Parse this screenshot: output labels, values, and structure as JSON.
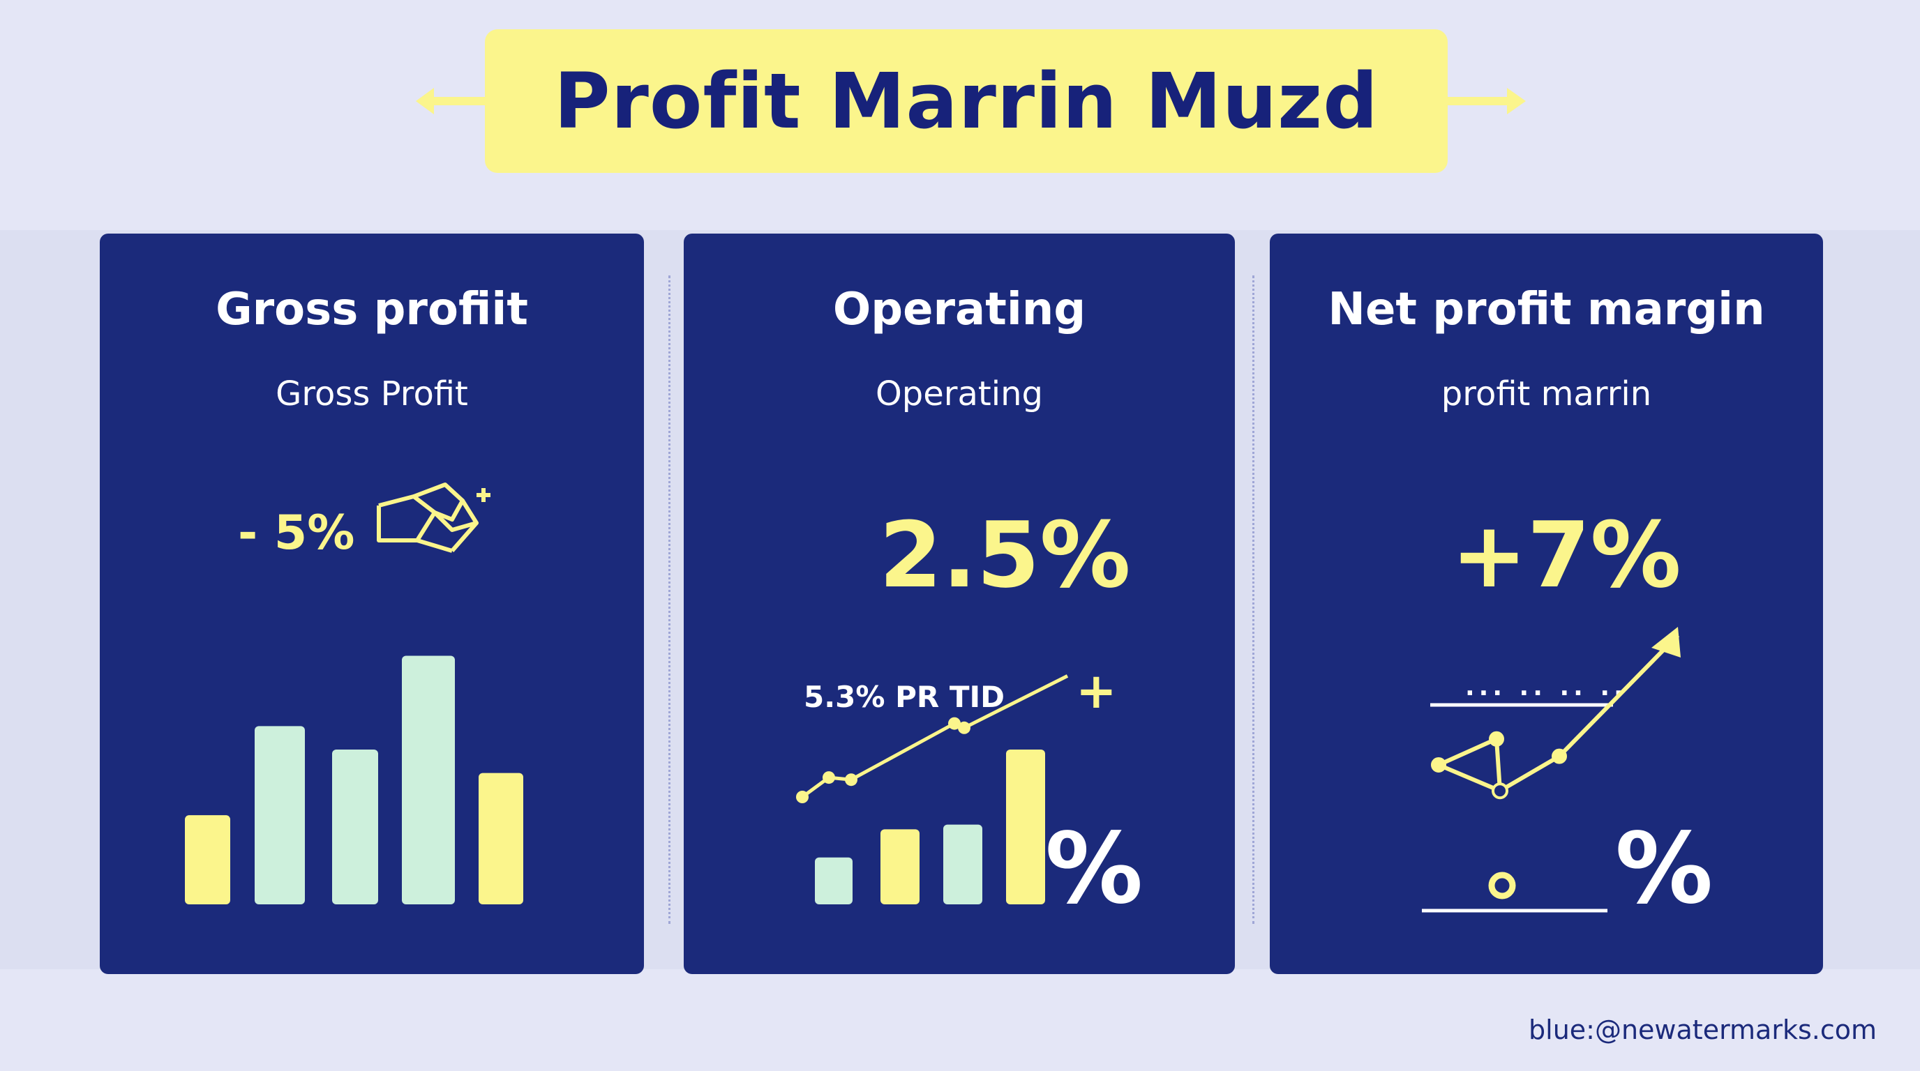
{
  "header": {
    "title": "Profit Marrin Muzd"
  },
  "cards": [
    {
      "title": "Gross profiit",
      "subtitle": "Gross Profit",
      "metric": "- 5%",
      "icon": "hand-pointer-icon"
    },
    {
      "title": "Operating",
      "subtitle": "Operating",
      "metric": "2.5%",
      "annotation": "5.3% PR TID",
      "plus": "+",
      "percent_glyph": "%"
    },
    {
      "title": "Net profit margin",
      "subtitle": "profit marrin",
      "metric": "+7%",
      "percent_glyph": "%",
      "dotted_label": "... .. .. .."
    }
  ],
  "watermark": "blue:@newatermarks.com",
  "colors": {
    "background": "#e4e6f6",
    "card": "#1b2a7b",
    "accent_yellow": "#fbf58c",
    "accent_mint": "#cdf0dc",
    "title_text": "#17227a"
  },
  "chart_data": [
    {
      "type": "bar",
      "series_colors": [
        "#fbf58c",
        "#cdf0dc",
        "#cdf0dc",
        "#cdf0dc",
        "#fbf58c"
      ],
      "values": [
        38,
        76,
        66,
        106,
        56
      ],
      "ylim": [
        0,
        110
      ]
    },
    {
      "type": "bar",
      "series_colors": [
        "#cdf0dc",
        "#fbf58c",
        "#cdf0dc",
        "#fbf58c"
      ],
      "values": [
        20,
        32,
        34,
        66
      ],
      "ylim": [
        0,
        110
      ],
      "line": [
        40,
        58,
        56,
        108,
        104,
        152
      ]
    },
    {
      "type": "line",
      "points": [
        [
          0,
          40
        ],
        [
          1,
          52
        ],
        [
          2,
          28
        ],
        [
          3,
          44
        ],
        [
          4,
          100
        ]
      ]
    }
  ]
}
